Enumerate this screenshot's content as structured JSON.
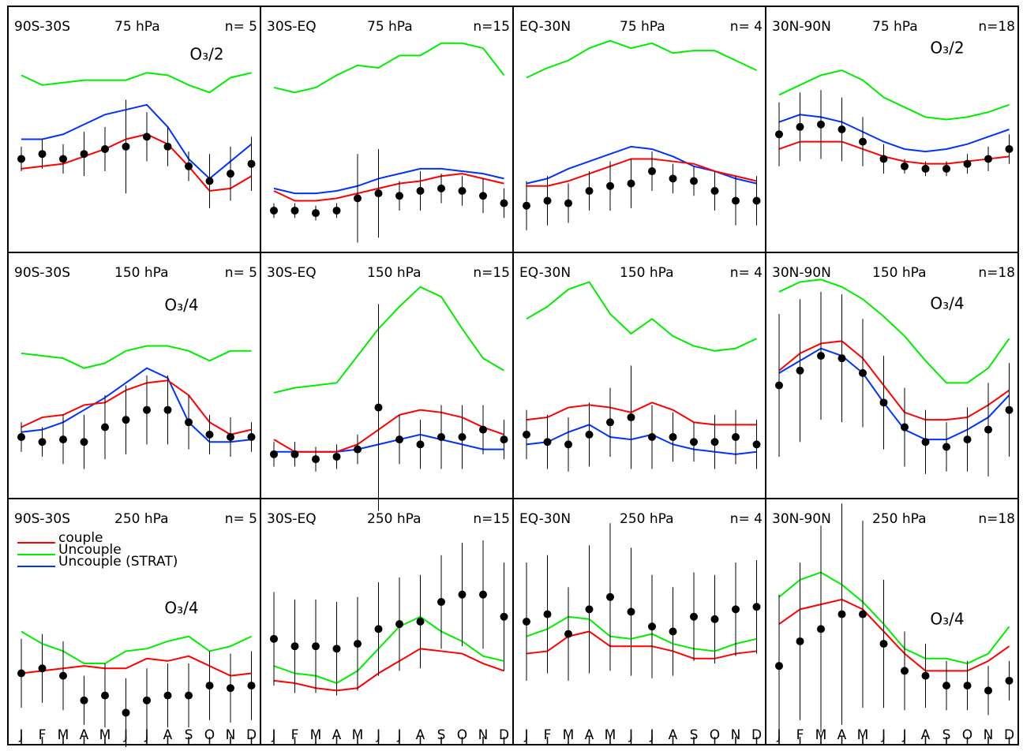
{
  "chart_data": [
    {
      "type": "line",
      "region": "90S-30S",
      "level": "75 hPa",
      "n": "n= 5",
      "annotation": "O₃/2",
      "ylim": [
        0,
        100
      ],
      "series": [
        {
          "color": "#00ee00",
          "values": [
            72,
            68,
            69,
            70,
            70,
            70,
            73,
            72,
            68,
            65,
            71,
            73
          ]
        },
        {
          "color": "#0033ff",
          "values": [
            46,
            46,
            48,
            52,
            56,
            58,
            60,
            51,
            38,
            30,
            37,
            44
          ]
        },
        {
          "color": "#ff0000",
          "values": [
            34,
            35,
            36,
            39,
            42,
            46,
            48,
            44,
            35,
            25,
            26,
            31
          ]
        }
      ],
      "observations": {
        "color": "#000000",
        "values": [
          38,
          40,
          38,
          40,
          42,
          43,
          47,
          43,
          35,
          29,
          32,
          36
        ],
        "errors": [
          5,
          6,
          6,
          9,
          9,
          19,
          10,
          8,
          6,
          11,
          11,
          11
        ]
      }
    },
    {
      "type": "line",
      "region": "30S-EQ",
      "level": "75 hPa",
      "n": "n=15",
      "ylim": [
        0,
        100
      ],
      "series": [
        {
          "color": "#00ee00",
          "values": [
            67,
            65,
            67,
            72,
            76,
            75,
            80,
            80,
            85,
            85,
            83,
            72
          ]
        },
        {
          "color": "#0033ff",
          "values": [
            26,
            24,
            24,
            25,
            27,
            30,
            32,
            34,
            34,
            33,
            32,
            30
          ]
        },
        {
          "color": "#ff0000",
          "values": [
            25,
            21,
            21,
            22,
            24,
            26,
            28,
            29,
            31,
            32,
            30,
            28
          ]
        }
      ],
      "observations": {
        "color": "#000000",
        "values": [
          17,
          17,
          16,
          17,
          22,
          24,
          23,
          25,
          26,
          25,
          23,
          20
        ],
        "errors": [
          3,
          3,
          3,
          3,
          18,
          18,
          6,
          8,
          6,
          6,
          7,
          6
        ]
      }
    },
    {
      "type": "line",
      "region": "EQ-30N",
      "level": "75 hPa",
      "n": "n= 4",
      "ylim": [
        0,
        100
      ],
      "series": [
        {
          "color": "#00ee00",
          "values": [
            71,
            75,
            78,
            83,
            86,
            83,
            85,
            81,
            82,
            82,
            78,
            74
          ]
        },
        {
          "color": "#0033ff",
          "values": [
            28,
            30,
            34,
            37,
            40,
            43,
            42,
            39,
            35,
            33,
            30,
            28
          ]
        },
        {
          "color": "#ff0000",
          "values": [
            27,
            27,
            29,
            32,
            35,
            38,
            38,
            37,
            36,
            33,
            31,
            29
          ]
        }
      ],
      "observations": {
        "color": "#000000",
        "values": [
          19,
          21,
          20,
          25,
          27,
          28,
          33,
          30,
          29,
          25,
          21,
          21
        ],
        "errors": [
          10,
          10,
          8,
          8,
          10,
          10,
          8,
          6,
          6,
          8,
          10,
          10
        ]
      }
    },
    {
      "type": "line",
      "region": "30N-90N",
      "level": "75 hPa",
      "n": "n=18",
      "annotation": "O₃/2",
      "ylim": [
        0,
        100
      ],
      "series": [
        {
          "color": "#00ee00",
          "values": [
            64,
            68,
            72,
            74,
            70,
            63,
            59,
            55,
            54,
            55,
            57,
            60
          ]
        },
        {
          "color": "#0033ff",
          "values": [
            53,
            56,
            55,
            53,
            49,
            45,
            42,
            41,
            42,
            44,
            47,
            50
          ]
        },
        {
          "color": "#ff0000",
          "values": [
            42,
            45,
            45,
            45,
            42,
            39,
            37,
            36,
            36,
            37,
            38,
            39
          ]
        }
      ],
      "observations": {
        "color": "#000000",
        "values": [
          48,
          51,
          52,
          50,
          45,
          38,
          35,
          34,
          34,
          36,
          38,
          42
        ],
        "errors": [
          13,
          14,
          14,
          13,
          10,
          6,
          3,
          3,
          3,
          4,
          5,
          6
        ]
      }
    },
    {
      "type": "line",
      "region": "90S-30S",
      "level": "150 hPa",
      "n": "n= 5",
      "annotation": "O₃/4",
      "ylim": [
        0,
        100
      ],
      "series": [
        {
          "color": "#00ee00",
          "values": [
            59,
            58,
            57,
            53,
            55,
            60,
            62,
            62,
            60,
            56,
            60,
            60
          ]
        },
        {
          "color": "#0033ff",
          "values": [
            27,
            28,
            31,
            36,
            41,
            47,
            53,
            49,
            31,
            23,
            23,
            24
          ]
        },
        {
          "color": "#ff0000",
          "values": [
            29,
            33,
            34,
            38,
            39,
            44,
            47,
            48,
            42,
            31,
            26,
            28
          ]
        }
      ],
      "observations": {
        "color": "#000000",
        "values": [
          25,
          23,
          24,
          23,
          29,
          32,
          36,
          36,
          31,
          26,
          25,
          25
        ],
        "errors": [
          6,
          6,
          10,
          11,
          13,
          14,
          14,
          14,
          11,
          8,
          8,
          6
        ]
      }
    },
    {
      "type": "line",
      "region": "30S-EQ",
      "level": "150 hPa",
      "n": "n=15",
      "ylim": [
        0,
        100
      ],
      "series": [
        {
          "color": "#00ee00",
          "values": [
            43,
            45,
            46,
            47,
            58,
            69,
            78,
            86,
            82,
            69,
            57,
            52
          ]
        },
        {
          "color": "#0033ff",
          "values": [
            19,
            19,
            19,
            19,
            20,
            22,
            24,
            26,
            24,
            22,
            20,
            20
          ]
        },
        {
          "color": "#ff0000",
          "values": [
            24,
            19,
            19,
            19,
            22,
            28,
            34,
            36,
            35,
            33,
            29,
            26
          ]
        }
      ],
      "observations": {
        "color": "#000000",
        "values": [
          18,
          18,
          16,
          17,
          20,
          37,
          24,
          22,
          25,
          25,
          28,
          24
        ],
        "errors": [
          5,
          5,
          5,
          5,
          6,
          42,
          10,
          10,
          13,
          13,
          10,
          8
        ]
      }
    },
    {
      "type": "line",
      "region": "EQ-30N",
      "level": "150 hPa",
      "n": "n= 4",
      "ylim": [
        0,
        100
      ],
      "series": [
        {
          "color": "#00ee00",
          "values": [
            73,
            78,
            85,
            88,
            75,
            67,
            73,
            66,
            62,
            60,
            61,
            65
          ]
        },
        {
          "color": "#0033ff",
          "values": [
            22,
            23,
            27,
            30,
            25,
            24,
            26,
            22,
            20,
            19,
            18,
            19
          ]
        },
        {
          "color": "#ff0000",
          "values": [
            32,
            33,
            37,
            38,
            37,
            35,
            39,
            36,
            31,
            30,
            30,
            30
          ]
        }
      ],
      "observations": {
        "color": "#000000",
        "values": [
          26,
          23,
          22,
          26,
          31,
          33,
          25,
          25,
          23,
          23,
          25,
          22
        ],
        "errors": [
          10,
          11,
          11,
          13,
          14,
          21,
          13,
          10,
          8,
          11,
          11,
          10
        ]
      }
    },
    {
      "type": "line",
      "region": "30N-90N",
      "level": "150 hPa",
      "n": "n=18",
      "annotation": "O₃/4",
      "ylim": [
        0,
        100
      ],
      "series": [
        {
          "color": "#00ee00",
          "values": [
            84,
            88,
            89,
            86,
            81,
            74,
            66,
            56,
            47,
            47,
            53,
            65
          ]
        },
        {
          "color": "#0033ff",
          "values": [
            51,
            56,
            61,
            58,
            51,
            39,
            28,
            24,
            24,
            28,
            33,
            42
          ]
        },
        {
          "color": "#ff0000",
          "values": [
            52,
            59,
            63,
            64,
            57,
            46,
            35,
            32,
            32,
            33,
            38,
            44
          ]
        }
      ],
      "observations": {
        "color": "#000000",
        "values": [
          46,
          52,
          58,
          57,
          51,
          39,
          29,
          23,
          21,
          24,
          28,
          36
        ],
        "errors": [
          29,
          29,
          26,
          26,
          22,
          19,
          16,
          13,
          10,
          13,
          19,
          19
        ]
      }
    },
    {
      "type": "line",
      "region": "90S-30S",
      "level": "250 hPa",
      "n": "n= 5",
      "annotation": "O₃/4",
      "ylim": [
        0,
        100
      ],
      "categories": [
        "J",
        "F",
        "M",
        "A",
        "M",
        "J",
        "J",
        "A",
        "S",
        "O",
        "N",
        "D"
      ],
      "series": [
        {
          "name": "couple",
          "color": "#ff0000",
          "values": [
            29,
            30,
            31,
            32,
            31,
            31,
            35,
            34,
            36,
            32,
            28,
            29
          ]
        },
        {
          "name": "Uncouple",
          "color": "#00ee00",
          "values": [
            46,
            41,
            38,
            33,
            33,
            38,
            39,
            42,
            44,
            38,
            40,
            44
          ]
        },
        {
          "name": "Uncouple (STRAT)",
          "color": "#0033ff",
          "values": [
            null,
            null,
            null,
            null,
            null,
            null,
            null,
            null,
            null,
            null,
            null,
            null
          ]
        }
      ],
      "observations": {
        "color": "#000000",
        "values": [
          29,
          31,
          28,
          18,
          20,
          13,
          18,
          20,
          20,
          24,
          23,
          24
        ],
        "errors": [
          14,
          14,
          14,
          10,
          13,
          14,
          13,
          13,
          13,
          14,
          14,
          14
        ]
      }
    },
    {
      "type": "line",
      "region": "30S-EQ",
      "level": "250 hPa",
      "n": "n=15",
      "ylim": [
        0,
        100
      ],
      "categories": [
        "J",
        "F",
        "M",
        "A",
        "M",
        "J",
        "J",
        "A",
        "S",
        "O",
        "N",
        "D"
      ],
      "series": [
        {
          "color": "#00ee00",
          "values": [
            32,
            29,
            28,
            25,
            30,
            39,
            48,
            52,
            46,
            42,
            36,
            34
          ]
        },
        {
          "color": "#ff0000",
          "values": [
            26,
            25,
            23,
            22,
            23,
            29,
            34,
            39,
            38,
            37,
            33,
            30
          ]
        }
      ],
      "observations": {
        "color": "#000000",
        "values": [
          43,
          40,
          40,
          39,
          41,
          47,
          49,
          50,
          58,
          61,
          61,
          52
        ],
        "errors": [
          19,
          19,
          19,
          19,
          19,
          19,
          19,
          19,
          19,
          21,
          22,
          22
        ]
      }
    },
    {
      "type": "line",
      "region": "EQ-30N",
      "level": "250 hPa",
      "n": "n= 4",
      "ylim": [
        0,
        100
      ],
      "categories": [
        "J",
        "F",
        "M",
        "A",
        "M",
        "J",
        "J",
        "A",
        "S",
        "O",
        "N",
        "D"
      ],
      "series": [
        {
          "color": "#00ee00",
          "values": [
            44,
            47,
            52,
            51,
            44,
            43,
            45,
            41,
            39,
            38,
            41,
            43
          ]
        },
        {
          "color": "#ff0000",
          "values": [
            37,
            38,
            44,
            46,
            40,
            40,
            40,
            38,
            35,
            35,
            37,
            38
          ]
        }
      ],
      "observations": {
        "color": "#000000",
        "values": [
          50,
          53,
          45,
          55,
          60,
          54,
          48,
          46,
          52,
          51,
          55,
          56
        ],
        "errors": [
          24,
          24,
          19,
          26,
          30,
          26,
          21,
          18,
          18,
          18,
          19,
          19
        ]
      }
    },
    {
      "type": "line",
      "region": "30N-90N",
      "level": "250 hPa",
      "n": "n=18",
      "annotation": "O₃/4",
      "ylim": [
        0,
        100
      ],
      "categories": [
        "J",
        "F",
        "M",
        "A",
        "M",
        "J",
        "J",
        "A",
        "S",
        "O",
        "N",
        "D"
      ],
      "series": [
        {
          "color": "#00ee00",
          "values": [
            60,
            67,
            70,
            65,
            58,
            49,
            39,
            35,
            35,
            33,
            37,
            48
          ]
        },
        {
          "color": "#ff0000",
          "values": [
            49,
            55,
            57,
            59,
            55,
            46,
            37,
            30,
            30,
            30,
            34,
            40
          ]
        }
      ],
      "observations": {
        "color": "#000000",
        "values": [
          32,
          42,
          47,
          53,
          53,
          41,
          30,
          28,
          24,
          24,
          22,
          26
        ],
        "errors": [
          29,
          32,
          42,
          45,
          38,
          26,
          16,
          13,
          10,
          10,
          10,
          8
        ]
      }
    }
  ]
}
